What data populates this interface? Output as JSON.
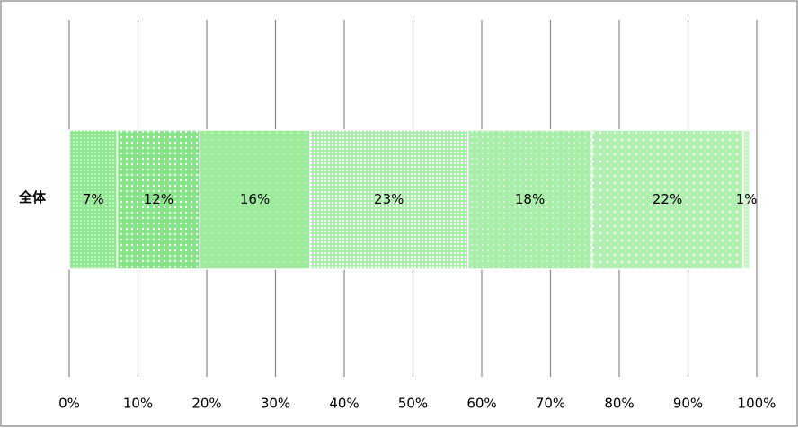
{
  "chart_data": {
    "type": "stacked-bar-horizontal",
    "categories": [
      "全体"
    ],
    "series": [
      {
        "color": "#8fe88f",
        "values": [
          7
        ],
        "value_labels": [
          "7%"
        ]
      },
      {
        "color": "#86e486",
        "values": [
          12
        ],
        "value_labels": [
          "12%"
        ]
      },
      {
        "color": "#9cec9c",
        "values": [
          16
        ],
        "value_labels": [
          "16%"
        ]
      },
      {
        "color": "#a4eea4",
        "values": [
          23
        ],
        "value_labels": [
          "23%"
        ]
      },
      {
        "color": "#a8eea8",
        "values": [
          18
        ],
        "value_labels": [
          "18%"
        ]
      },
      {
        "color": "#b2f0b2",
        "values": [
          22
        ],
        "value_labels": [
          "22%"
        ]
      },
      {
        "color": "#c4f4c4",
        "values": [
          1
        ],
        "value_labels": [
          "1%"
        ]
      }
    ],
    "xlim": [
      0,
      100
    ],
    "xticks": [
      {
        "value": 0,
        "label": "0%"
      },
      {
        "value": 10,
        "label": "10%"
      },
      {
        "value": 20,
        "label": "20%"
      },
      {
        "value": 30,
        "label": "30%"
      },
      {
        "value": 40,
        "label": "40%"
      },
      {
        "value": 50,
        "label": "50%"
      },
      {
        "value": 60,
        "label": "60%"
      },
      {
        "value": 70,
        "label": "70%"
      },
      {
        "value": 80,
        "label": "80%"
      },
      {
        "value": 90,
        "label": "90%"
      },
      {
        "value": 100,
        "label": "100%"
      }
    ],
    "grid": true
  }
}
